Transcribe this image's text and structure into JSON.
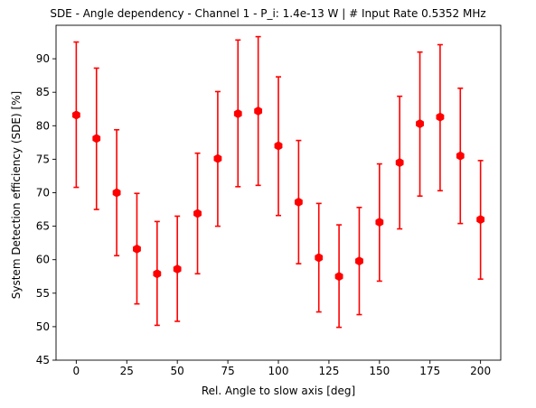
{
  "chart_data": {
    "type": "scatter",
    "title": "SDE - Angle dependency - Channel 1 - P_i: 1.4e-13 W | # Input Rate 0.5352 MHz",
    "xlabel": "Rel. Angle to slow axis [deg]",
    "ylabel": "System Detection efficiency (SDE) [%]",
    "xlim": [
      -10,
      210
    ],
    "ylim": [
      45,
      95
    ],
    "xticks": [
      0,
      25,
      50,
      75,
      100,
      125,
      150,
      175,
      200
    ],
    "yticks": [
      45,
      50,
      55,
      60,
      65,
      70,
      75,
      80,
      85,
      90
    ],
    "grid": false,
    "color": "#ff0000",
    "series": [
      {
        "x": [
          0,
          10,
          20,
          30,
          40,
          50,
          60,
          70,
          80,
          90,
          100,
          110,
          120,
          130,
          140,
          150,
          160,
          170,
          180,
          190,
          200
        ],
        "y": [
          81.6,
          78.1,
          70.0,
          61.6,
          57.9,
          58.6,
          66.9,
          75.1,
          81.8,
          82.2,
          77.0,
          68.6,
          60.3,
          57.5,
          59.8,
          65.6,
          74.5,
          80.3,
          81.3,
          75.5,
          66.0
        ],
        "yerr_low": [
          70.8,
          67.5,
          60.6,
          53.4,
          50.2,
          50.8,
          57.9,
          65.0,
          70.9,
          71.1,
          66.6,
          59.4,
          52.2,
          49.9,
          51.8,
          56.8,
          64.6,
          69.5,
          70.3,
          65.4,
          57.1
        ],
        "yerr_high": [
          92.5,
          88.6,
          79.4,
          69.9,
          65.7,
          66.5,
          75.9,
          85.1,
          92.8,
          93.3,
          87.3,
          77.8,
          68.4,
          65.2,
          67.8,
          74.3,
          84.4,
          91.0,
          92.1,
          85.6,
          74.8
        ]
      }
    ]
  }
}
